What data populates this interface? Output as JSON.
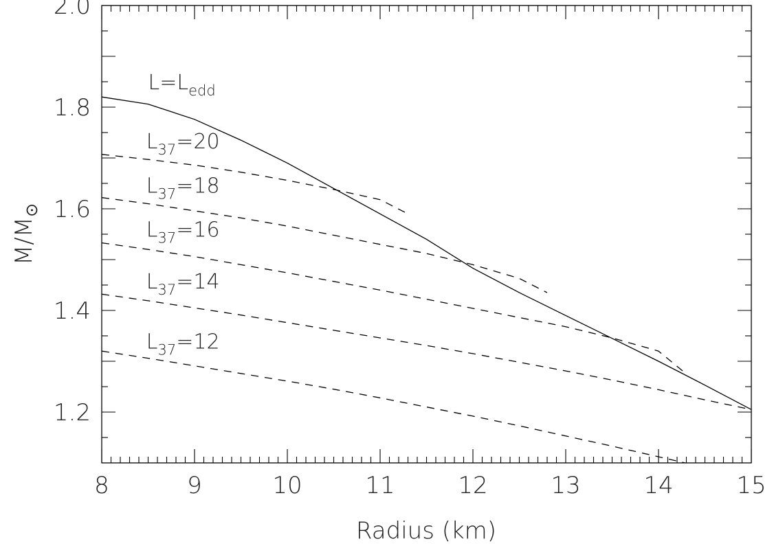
{
  "chart_data": {
    "type": "line",
    "xlabel": "Radius (km)",
    "ylabel": "M/M",
    "ylabel_symbol": "⊙",
    "xlim": [
      8,
      15
    ],
    "ylim": [
      1.1,
      2.0
    ],
    "x_ticks": [
      {
        "value": 8,
        "label": "8"
      },
      {
        "value": 9,
        "label": "9"
      },
      {
        "value": 10,
        "label": "10"
      },
      {
        "value": 11,
        "label": "11"
      },
      {
        "value": 12,
        "label": "12"
      },
      {
        "value": 13,
        "label": "13"
      },
      {
        "value": 14,
        "label": "14"
      },
      {
        "value": 15,
        "label": "15"
      }
    ],
    "y_ticks": [
      {
        "value": 1.2,
        "label": "1.2"
      },
      {
        "value": 1.4,
        "label": "1.4"
      },
      {
        "value": 1.6,
        "label": "1.6"
      },
      {
        "value": 1.8,
        "label": "1.8"
      },
      {
        "value": 2.0,
        "label": "2.0"
      }
    ],
    "grid": false,
    "series": [
      {
        "style": "solid",
        "label_base": "L=L",
        "label_sub": "edd",
        "label_value": "",
        "points": [
          [
            8,
            1.82
          ],
          [
            8.5,
            1.806
          ],
          [
            9,
            1.776
          ],
          [
            9.5,
            1.735
          ],
          [
            10,
            1.69
          ],
          [
            10.5,
            1.64
          ],
          [
            11,
            1.59
          ],
          [
            11.5,
            1.54
          ],
          [
            12,
            1.483
          ],
          [
            12.5,
            1.435
          ],
          [
            13,
            1.39
          ],
          [
            13.5,
            1.345
          ],
          [
            14,
            1.3
          ],
          [
            14.5,
            1.253
          ],
          [
            15,
            1.205
          ]
        ]
      },
      {
        "style": "dashed",
        "label_base": "L",
        "label_sub": "37",
        "label_value": "=20",
        "points": [
          [
            8,
            1.707
          ],
          [
            8.5,
            1.697
          ],
          [
            9,
            1.686
          ],
          [
            9.5,
            1.672
          ],
          [
            10,
            1.656
          ],
          [
            10.5,
            1.638
          ],
          [
            11,
            1.618
          ],
          [
            11.3,
            1.59
          ]
        ]
      },
      {
        "style": "dashed",
        "label_base": "L",
        "label_sub": "37",
        "label_value": "=18",
        "points": [
          [
            8,
            1.622
          ],
          [
            8.5,
            1.61
          ],
          [
            9,
            1.596
          ],
          [
            9.5,
            1.582
          ],
          [
            10,
            1.566
          ],
          [
            10.5,
            1.548
          ],
          [
            11,
            1.53
          ],
          [
            11.5,
            1.512
          ],
          [
            12,
            1.49
          ],
          [
            12.5,
            1.463
          ],
          [
            12.8,
            1.435
          ]
        ]
      },
      {
        "style": "dashed",
        "label_base": "L",
        "label_sub": "37",
        "label_value": "=16",
        "points": [
          [
            8,
            1.533
          ],
          [
            8.5,
            1.52
          ],
          [
            9,
            1.506
          ],
          [
            9.5,
            1.49
          ],
          [
            10,
            1.474
          ],
          [
            10.5,
            1.457
          ],
          [
            11,
            1.44
          ],
          [
            11.5,
            1.422
          ],
          [
            12,
            1.404
          ],
          [
            12.5,
            1.386
          ],
          [
            13,
            1.368
          ],
          [
            13.5,
            1.346
          ],
          [
            14,
            1.32
          ],
          [
            14.3,
            1.275
          ]
        ]
      },
      {
        "style": "dashed",
        "label_base": "L",
        "label_sub": "37",
        "label_value": "=14",
        "points": [
          [
            8,
            1.432
          ],
          [
            8.5,
            1.419
          ],
          [
            9,
            1.405
          ],
          [
            9.5,
            1.391
          ],
          [
            10,
            1.376
          ],
          [
            10.5,
            1.361
          ],
          [
            11,
            1.346
          ],
          [
            11.5,
            1.331
          ],
          [
            12,
            1.315
          ],
          [
            12.5,
            1.298
          ],
          [
            13,
            1.281
          ],
          [
            13.5,
            1.263
          ],
          [
            14,
            1.244
          ],
          [
            14.5,
            1.224
          ],
          [
            15,
            1.205
          ]
        ]
      },
      {
        "style": "dashed",
        "label_base": "L",
        "label_sub": "37",
        "label_value": "=12",
        "points": [
          [
            8,
            1.32
          ],
          [
            8.5,
            1.306
          ],
          [
            9,
            1.291
          ],
          [
            9.5,
            1.276
          ],
          [
            10,
            1.261
          ],
          [
            10.5,
            1.245
          ],
          [
            11,
            1.228
          ],
          [
            11.5,
            1.21
          ],
          [
            12,
            1.192
          ],
          [
            12.5,
            1.173
          ],
          [
            13,
            1.153
          ],
          [
            13.5,
            1.133
          ],
          [
            14,
            1.112
          ],
          [
            14.5,
            1.091
          ],
          [
            15,
            1.07
          ]
        ]
      }
    ],
    "annotations": [
      {
        "series_index": 0,
        "x": 8.5,
        "y": 1.835
      },
      {
        "series_index": 1,
        "x": 8.48,
        "y": 1.719
      },
      {
        "series_index": 2,
        "x": 8.48,
        "y": 1.632
      },
      {
        "series_index": 3,
        "x": 8.48,
        "y": 1.545
      },
      {
        "series_index": 4,
        "x": 8.48,
        "y": 1.443
      },
      {
        "series_index": 5,
        "x": 8.48,
        "y": 1.325
      }
    ]
  }
}
